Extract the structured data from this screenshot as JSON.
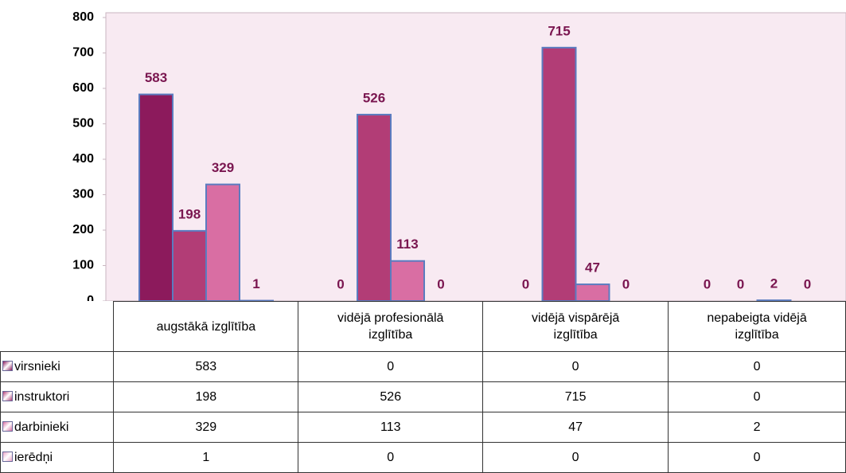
{
  "chart_data": {
    "type": "bar",
    "categories": [
      "augstākā izglītība",
      "vidējā profesionālā izglītība",
      "vidējā vispārējā izglītība",
      "nepabeigta vidējā izglītība"
    ],
    "series": [
      {
        "name": "virsnieki",
        "color": "#8c1a5c",
        "values": [
          583,
          0,
          0,
          0
        ]
      },
      {
        "name": "instruktori",
        "color": "#b23d76",
        "values": [
          198,
          526,
          715,
          0
        ]
      },
      {
        "name": "darbinieki",
        "color": "#d96ea3",
        "values": [
          329,
          113,
          47,
          2
        ]
      },
      {
        "name": "ierēdņi",
        "color": "#eba6c8",
        "values": [
          1,
          0,
          0,
          0
        ]
      }
    ],
    "ylim": [
      0,
      800
    ],
    "yticks": [
      0,
      100,
      200,
      300,
      400,
      500,
      600,
      700,
      800
    ]
  }
}
